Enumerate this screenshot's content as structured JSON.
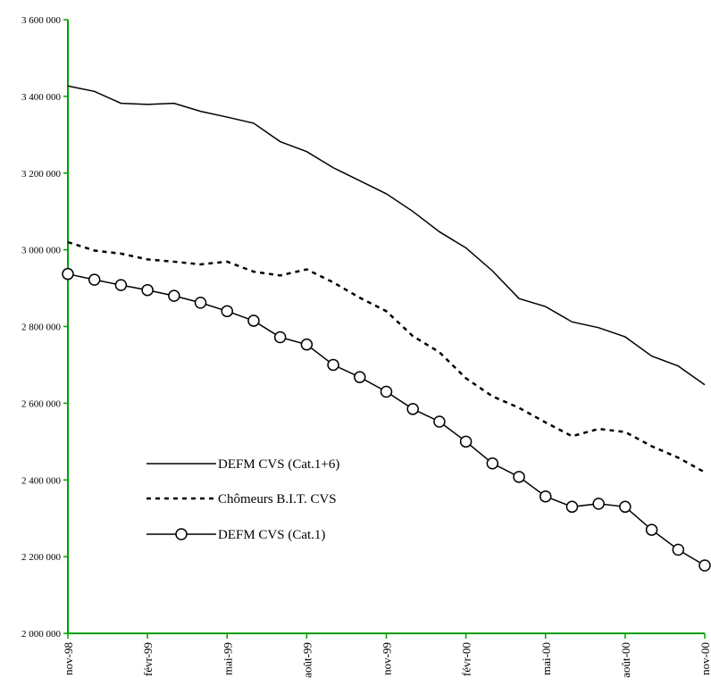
{
  "chart_data": {
    "type": "line",
    "title": "",
    "xlabel": "",
    "ylabel": "",
    "ylim": [
      2000000,
      3600000
    ],
    "y_ticks": [
      2000000,
      2200000,
      2400000,
      2600000,
      2800000,
      3000000,
      3200000,
      3400000,
      3600000
    ],
    "y_tick_labels": [
      "2 000 000",
      "2 200 000",
      "2 400 000",
      "2 600 000",
      "2 800 000",
      "3 000 000",
      "3 200 000",
      "3 400 000",
      "3 600 000"
    ],
    "x": [
      "nov-98",
      "déc-98",
      "janv-99",
      "févr-99",
      "mars-99",
      "avr-99",
      "mai-99",
      "juin-99",
      "juil-99",
      "août-99",
      "sept-99",
      "oct-99",
      "nov-99",
      "déc-99",
      "janv-00",
      "févr-00",
      "mars-00",
      "avr-00",
      "mai-00",
      "juin-00",
      "juil-00",
      "août-00",
      "sept-00",
      "oct-00",
      "nov-00"
    ],
    "x_tick_labels": [
      "nov-98",
      "févr-99",
      "mai-99",
      "août-99",
      "nov-99",
      "févr-00",
      "mai-00",
      "août-00",
      "nov-00"
    ],
    "grid": false,
    "legend_position": "left-middle",
    "series": [
      {
        "name": "DEFM CVS (Cat.1+6)",
        "style": "solid",
        "color": "#000000",
        "values": [
          3427000,
          3413000,
          3382000,
          3379000,
          3382000,
          3361000,
          3346000,
          3330000,
          3282000,
          3256000,
          3214000,
          3180000,
          3146000,
          3100000,
          3047000,
          3005000,
          2945000,
          2873000,
          2852000,
          2812000,
          2797000,
          2773000,
          2723000,
          2697000,
          2648000
        ]
      },
      {
        "name": "Chômeurs B.I.T. CVS",
        "style": "dashed",
        "color": "#000000",
        "values": [
          3020000,
          2998000,
          2990000,
          2975000,
          2969000,
          2962000,
          2969000,
          2943000,
          2933000,
          2949000,
          2915000,
          2875000,
          2840000,
          2775000,
          2733000,
          2665000,
          2618000,
          2588000,
          2550000,
          2514000,
          2533000,
          2525000,
          2488000,
          2458000,
          2420000
        ]
      },
      {
        "name": "DEFM CVS (Cat.1)",
        "style": "solid-markers",
        "color": "#000000",
        "values": [
          2937000,
          2922000,
          2908000,
          2895000,
          2880000,
          2862000,
          2840000,
          2815000,
          2772000,
          2753000,
          2700000,
          2668000,
          2630000,
          2585000,
          2552000,
          2500000,
          2443000,
          2408000,
          2357000,
          2330000,
          2338000,
          2330000,
          2270000,
          2218000,
          2177000
        ]
      }
    ]
  }
}
